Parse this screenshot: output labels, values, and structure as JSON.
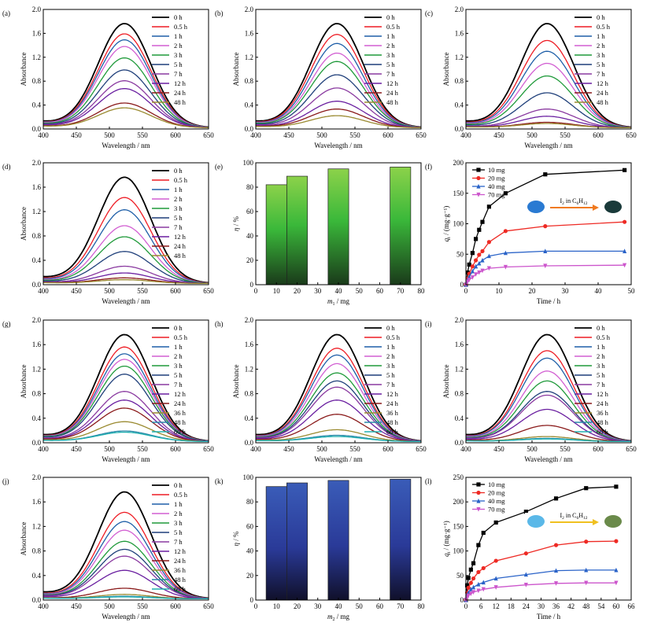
{
  "colors": {
    "0 h": "#000000",
    "0.5 h": "#ee1c24",
    "1 h": "#1f5fa8",
    "2 h": "#d25fd2",
    "3 h": "#1f9a3a",
    "5 h": "#1f3f7a",
    "7 h": "#8a3aa0",
    "12 h": "#6a1fa0",
    "24 h": "#8a1a1a",
    "36 h": "#9a8a30",
    "48 h": "#2a88a8",
    "60 h": "#20b0b0",
    "48 h (a-d)": "#9a8a30",
    "bar_e_top": "#8cd24a",
    "bar_e_mid": "#3ab83a",
    "bar_e_bot": "#1a3a1a",
    "bar_k_top": "#3a5cb8",
    "bar_k_bot": "#10102a",
    "arrow_f": "#f07a20",
    "arrow_l": "#f0c020"
  },
  "chart_data": [
    {
      "id": "a",
      "type": "line",
      "panel_label": "(a)",
      "xlabel": "Wavelength / nm",
      "ylabel": "Absorbance",
      "xlim": [
        400,
        650
      ],
      "ylim": [
        0,
        2.0
      ],
      "xticks": [
        "400",
        "450",
        "500",
        "550",
        "600",
        "650"
      ],
      "yticks": [
        "0.0",
        "0.4",
        "0.8",
        "1.2",
        "1.6",
        "2.0"
      ],
      "legend": [
        "0 h",
        "0.5 h",
        "1 h",
        "2 h",
        "3 h",
        "5 h",
        "7 h",
        "12 h",
        "24 h",
        "48 h"
      ],
      "peak_values": [
        1.73,
        1.56,
        1.46,
        1.35,
        1.16,
        0.96,
        0.78,
        0.65,
        0.41,
        0.33
      ],
      "peak_x": 523
    },
    {
      "id": "b",
      "type": "line",
      "panel_label": "(b)",
      "xlabel": "Wavelength / nm",
      "ylabel": "Absorbance",
      "xlim": [
        400,
        650
      ],
      "ylim": [
        0,
        2.0
      ],
      "xticks": [
        "400",
        "450",
        "500",
        "550",
        "600",
        "650"
      ],
      "yticks": [
        "0.0",
        "0.4",
        "0.8",
        "1.2",
        "1.6",
        "2.0"
      ],
      "legend": [
        "0 h",
        "0.5 h",
        "1 h",
        "2 h",
        "3 h",
        "5 h",
        "7 h",
        "12 h",
        "24 h",
        "48 h"
      ],
      "peak_values": [
        1.73,
        1.55,
        1.4,
        1.24,
        1.1,
        0.88,
        0.66,
        0.44,
        0.31,
        0.2
      ],
      "peak_x": 523
    },
    {
      "id": "c",
      "type": "line",
      "panel_label": "(c)",
      "xlabel": "Wavelength / nm",
      "ylabel": "Absorbance",
      "xlim": [
        400,
        650
      ],
      "ylim": [
        0,
        2.0
      ],
      "xticks": [
        "400",
        "450",
        "500",
        "550",
        "600",
        "650"
      ],
      "yticks": [
        "0.0",
        "0.4",
        "0.8",
        "1.2",
        "1.6",
        "2.0"
      ],
      "legend": [
        "0 h",
        "0.5 h",
        "1 h",
        "2 h",
        "3 h",
        "5 h",
        "7 h",
        "12 h",
        "24 h",
        "48 h"
      ],
      "peak_values": [
        1.73,
        1.45,
        1.27,
        1.07,
        0.86,
        0.58,
        0.31,
        0.19,
        0.09,
        0.07
      ],
      "peak_x": 523
    },
    {
      "id": "d",
      "type": "line",
      "panel_label": "(d)",
      "xlabel": "Wavelength / nm",
      "ylabel": "Absorbance",
      "xlim": [
        400,
        650
      ],
      "ylim": [
        0,
        2.0
      ],
      "xticks": [
        "400",
        "450",
        "500",
        "550",
        "600",
        "650"
      ],
      "yticks": [
        "0.0",
        "0.4",
        "0.8",
        "1.2",
        "1.6",
        "2.0"
      ],
      "legend": [
        "0 h",
        "0.5 h",
        "1 h",
        "2 h",
        "3 h",
        "5 h",
        "7 h",
        "12 h",
        "24 h",
        "48 h"
      ],
      "peak_values": [
        1.73,
        1.4,
        1.2,
        0.94,
        0.76,
        0.52,
        0.28,
        0.17,
        0.09,
        0.06
      ],
      "peak_x": 523
    },
    {
      "id": "e",
      "type": "bar",
      "panel_label": "(e)",
      "xlabel": "m",
      "xlabel_sub": "1",
      "xlabel_unit": " / mg",
      "ylabel": "η / %",
      "xlim": [
        0,
        80
      ],
      "ylim": [
        0,
        100
      ],
      "xticks": [
        "0",
        "10",
        "20",
        "30",
        "40",
        "50",
        "60",
        "70",
        "80"
      ],
      "yticks": [
        "0",
        "20",
        "40",
        "60",
        "80",
        "100"
      ],
      "categories": [
        10,
        20,
        40,
        70
      ],
      "values": [
        82,
        89,
        95,
        96.5
      ]
    },
    {
      "id": "f",
      "type": "line",
      "panel_label": "(f)",
      "xlabel": "Time / h",
      "ylabel": "q",
      "ylabel_sub": "t",
      "ylabel_unit": " / (mg·g⁻¹)",
      "xlim": [
        0,
        50
      ],
      "ylim": [
        0,
        200
      ],
      "xticks": [
        "0",
        "10",
        "20",
        "30",
        "40",
        "50"
      ],
      "yticks": [
        "0",
        "50",
        "100",
        "150",
        "200"
      ],
      "x": [
        0,
        0.5,
        1,
        2,
        3,
        4,
        5,
        7,
        12,
        24,
        48
      ],
      "series": [
        {
          "name": "10 mg",
          "marker": "square",
          "values": [
            0,
            20,
            33,
            52,
            75,
            90,
            103,
            128,
            150,
            181,
            188
          ]
        },
        {
          "name": "20 mg",
          "marker": "circle",
          "values": [
            0,
            10,
            18,
            30,
            40,
            49,
            55,
            70,
            88,
            96,
            103
          ]
        },
        {
          "name": "40 mg",
          "marker": "triangle",
          "values": [
            0,
            8,
            13,
            22,
            30,
            35,
            40,
            47,
            52,
            55,
            55
          ]
        },
        {
          "name": "70 mg",
          "marker": "triangle-down",
          "values": [
            0,
            5,
            8,
            12,
            17,
            20,
            23,
            27,
            29,
            31,
            32
          ]
        }
      ],
      "inset_text": "I",
      "inset_sub1": "2",
      "inset_mid": " in C",
      "inset_sub2": "6",
      "inset_h": "H",
      "inset_sub3": "12"
    },
    {
      "id": "g",
      "type": "line",
      "panel_label": "(g)",
      "xlabel": "Wavelength / nm",
      "ylabel": "Absorbance",
      "xlim": [
        400,
        650
      ],
      "ylim": [
        0,
        2.0
      ],
      "xticks": [
        "400",
        "450",
        "500",
        "550",
        "600",
        "650"
      ],
      "yticks": [
        "0.0",
        "0.4",
        "0.8",
        "1.2",
        "1.6",
        "2.0"
      ],
      "legend": [
        "0 h",
        "0.5 h",
        "1 h",
        "2 h",
        "3 h",
        "5 h",
        "7 h",
        "12 h",
        "24 h",
        "36 h",
        "48 h",
        "60 h"
      ],
      "peak_values": [
        1.73,
        1.53,
        1.42,
        1.33,
        1.22,
        1.09,
        0.81,
        0.67,
        0.54,
        0.32,
        0.17,
        0.15
      ],
      "peak_x": 523
    },
    {
      "id": "h",
      "type": "line",
      "panel_label": "(h)",
      "xlabel": "Wavelength / nm",
      "ylabel": "Absorbance",
      "xlim": [
        400,
        650
      ],
      "ylim": [
        0,
        2.0
      ],
      "xticks": [
        "400",
        "450",
        "500",
        "550",
        "600",
        "650"
      ],
      "yticks": [
        "0.0",
        "0.4",
        "0.8",
        "1.2",
        "1.6",
        "2.0"
      ],
      "legend": [
        "0 h",
        "0.5 h",
        "1 h",
        "2 h",
        "3 h",
        "5 h",
        "7 h",
        "12 h",
        "24 h",
        "36 h",
        "48 h",
        "60 h"
      ],
      "peak_values": [
        1.73,
        1.51,
        1.4,
        1.26,
        1.11,
        0.98,
        0.88,
        0.67,
        0.44,
        0.19,
        0.1,
        0.08
      ],
      "peak_x": 523
    },
    {
      "id": "i",
      "type": "line",
      "panel_label": "(i)",
      "xlabel": "Wavelength / nm",
      "ylabel": "Absorbance",
      "xlim": [
        400,
        650
      ],
      "ylim": [
        0,
        2.0
      ],
      "xticks": [
        "400",
        "450",
        "500",
        "550",
        "600",
        "650"
      ],
      "yticks": [
        "0.0",
        "0.4",
        "0.8",
        "1.2",
        "1.6",
        "2.0"
      ],
      "legend": [
        "0 h",
        "0.5 h",
        "1 h",
        "2 h",
        "3 h",
        "5 h",
        "7 h",
        "12 h",
        "24 h",
        "36 h",
        "48 h",
        "60 h"
      ],
      "peak_values": [
        1.73,
        1.47,
        1.35,
        1.14,
        0.98,
        0.81,
        0.75,
        0.52,
        0.26,
        0.08,
        0.05,
        0.04
      ],
      "peak_x": 523
    },
    {
      "id": "j",
      "type": "line",
      "panel_label": "(j)",
      "xlabel": "Wavelength / nm",
      "ylabel": "Absorbance",
      "xlim": [
        400,
        650
      ],
      "ylim": [
        0,
        2.0
      ],
      "xticks": [
        "400",
        "450",
        "500",
        "550",
        "600",
        "650"
      ],
      "yticks": [
        "0.0",
        "0.4",
        "0.8",
        "1.2",
        "1.6",
        "2.0"
      ],
      "legend": [
        "0 h",
        "0.5 h",
        "1 h",
        "2 h",
        "3 h",
        "5 h",
        "7 h",
        "12 h",
        "24 h",
        "36 h",
        "48 h",
        "60 h"
      ],
      "peak_values": [
        1.73,
        1.4,
        1.25,
        1.11,
        0.93,
        0.8,
        0.69,
        0.46,
        0.17,
        0.07,
        0.04,
        0.03
      ],
      "peak_x": 523
    },
    {
      "id": "k",
      "type": "bar",
      "panel_label": "(k)",
      "xlabel": "m",
      "xlabel_sub": "2",
      "xlabel_unit": " / mg",
      "ylabel": "η / %",
      "xlim": [
        0,
        80
      ],
      "ylim": [
        0,
        100
      ],
      "xticks": [
        "0",
        "10",
        "20",
        "30",
        "40",
        "50",
        "60",
        "70",
        "80"
      ],
      "yticks": [
        "0",
        "20",
        "40",
        "60",
        "80",
        "100"
      ],
      "categories": [
        10,
        20,
        40,
        70
      ],
      "values": [
        92.5,
        95.5,
        97.5,
        98.5
      ]
    },
    {
      "id": "l",
      "type": "line",
      "panel_label": "(l)",
      "xlabel": "Time / h",
      "ylabel": "q",
      "ylabel_sub": "t",
      "ylabel_unit": " / (mg·g⁻¹)",
      "xlim": [
        0,
        66
      ],
      "ylim": [
        0,
        250
      ],
      "xticks": [
        "0",
        "6",
        "12",
        "18",
        "24",
        "30",
        "36",
        "42",
        "48",
        "54",
        "60",
        "66"
      ],
      "yticks": [
        "0",
        "50",
        "100",
        "150",
        "200",
        "250"
      ],
      "x": [
        0,
        0.5,
        1,
        2,
        3,
        5,
        7,
        12,
        24,
        36,
        48,
        60
      ],
      "series": [
        {
          "name": "10 mg",
          "marker": "square",
          "values": [
            0,
            30,
            45,
            62,
            75,
            112,
            137,
            158,
            180,
            207,
            228,
            231
          ]
        },
        {
          "name": "20 mg",
          "marker": "circle",
          "values": [
            0,
            15,
            25,
            35,
            44,
            57,
            65,
            80,
            95,
            112,
            119,
            120
          ]
        },
        {
          "name": "40 mg",
          "marker": "triangle",
          "values": [
            0,
            10,
            15,
            22,
            26,
            32,
            36,
            44,
            52,
            60,
            61,
            61
          ]
        },
        {
          "name": "70 mg",
          "marker": "triangle-down",
          "values": [
            0,
            6,
            9,
            13,
            16,
            19,
            22,
            26,
            31,
            34,
            35,
            35
          ]
        }
      ],
      "inset_text": "I",
      "inset_sub1": "2",
      "inset_mid": " in C",
      "inset_sub2": "6",
      "inset_h": "H",
      "inset_sub3": "12"
    }
  ]
}
